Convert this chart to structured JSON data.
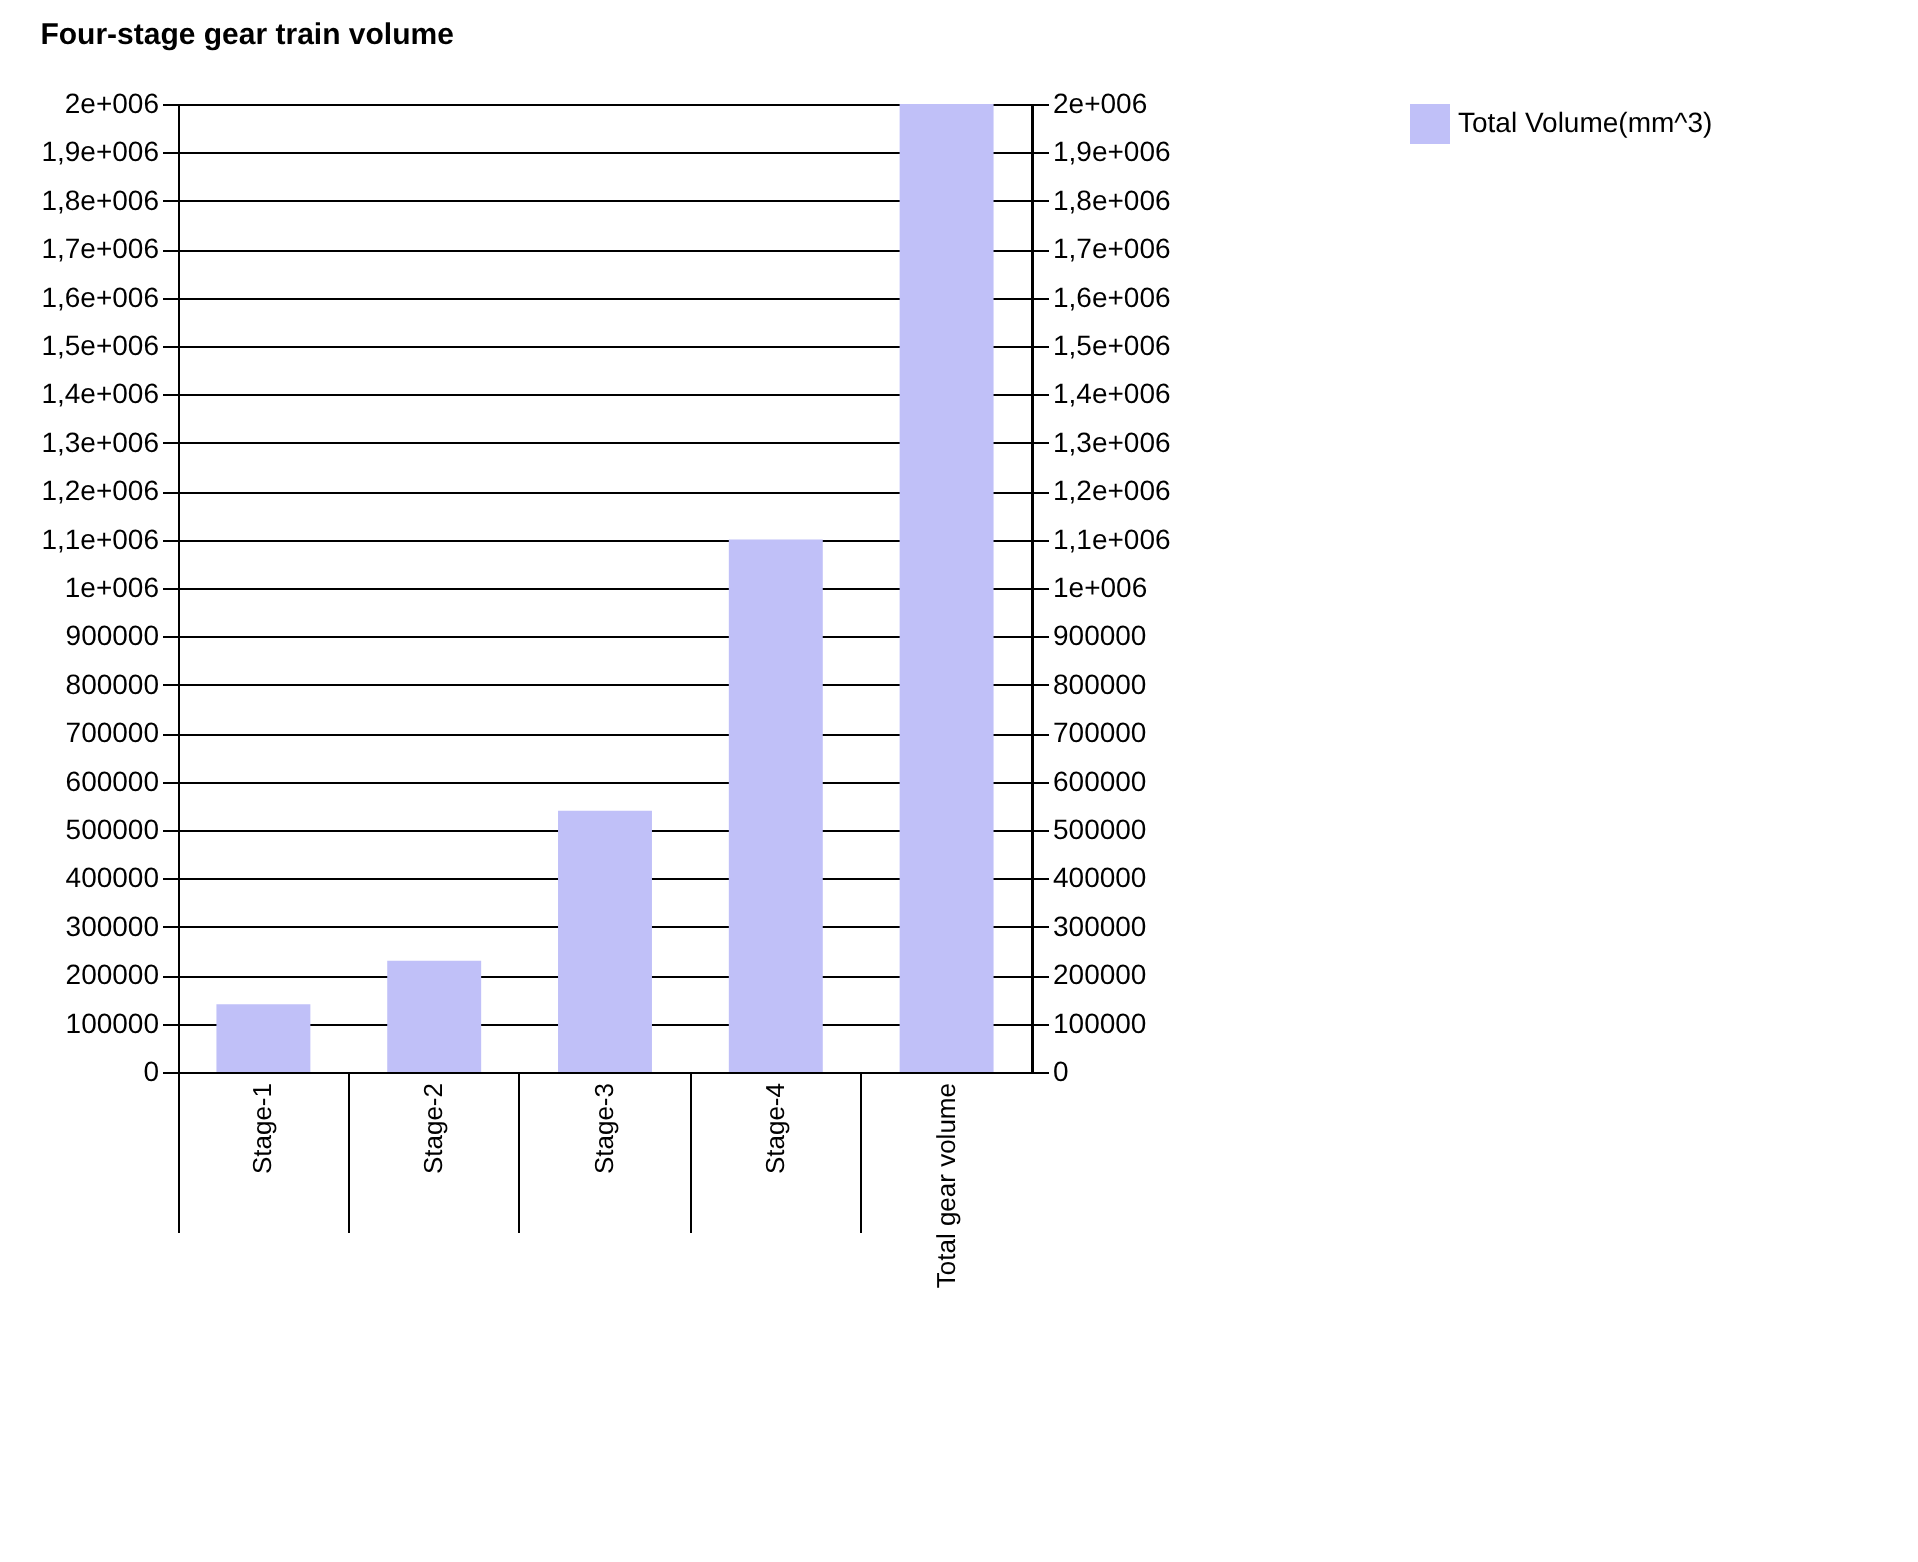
{
  "chart_data": {
    "type": "bar",
    "title": "Four-stage gear train volume",
    "categories": [
      "Stage-1",
      "Stage-2",
      "Stage-3",
      "Stage-4",
      "Total gear volume"
    ],
    "series": [
      {
        "name": "Total Volume(mm^3)",
        "color": "#c0c0f8",
        "values": [
          140000,
          230000,
          540000,
          1100000,
          2000000
        ]
      }
    ],
    "ylim": [
      0,
      2000000
    ],
    "yticks": [
      0,
      100000,
      200000,
      300000,
      400000,
      500000,
      600000,
      700000,
      800000,
      900000,
      {
        "value": 1000000,
        "label": "1e+006"
      },
      {
        "value": 1100000,
        "label": "1,1e+006"
      },
      {
        "value": 1200000,
        "label": "1,2e+006"
      },
      {
        "value": 1300000,
        "label": "1,3e+006"
      },
      {
        "value": 1400000,
        "label": "1,4e+006"
      },
      {
        "value": 1500000,
        "label": "1,5e+006"
      },
      {
        "value": 1600000,
        "label": "1,6e+006"
      },
      {
        "value": 1700000,
        "label": "1,7e+006"
      },
      {
        "value": 1800000,
        "label": "1,8e+006"
      },
      {
        "value": 1900000,
        "label": "1,9e+006"
      },
      {
        "value": 2000000,
        "label": "2e+006"
      }
    ],
    "y2lim": [
      0,
      2000000
    ],
    "y2ticks": [
      0,
      100000,
      200000,
      300000,
      400000,
      500000,
      600000,
      700000,
      800000,
      900000,
      {
        "value": 1000000,
        "label": "1e+006"
      },
      {
        "value": 1100000,
        "label": "1,1e+006"
      },
      {
        "value": 1200000,
        "label": "1,2e+006"
      },
      {
        "value": 1300000,
        "label": "1,3e+006"
      },
      {
        "value": 1400000,
        "label": "1,4e+006"
      },
      {
        "value": 1500000,
        "label": "1,5e+006"
      },
      {
        "value": 1600000,
        "label": "1,6e+006"
      },
      {
        "value": 1700000,
        "label": "1,7e+006"
      },
      {
        "value": 1800000,
        "label": "1,8e+006"
      },
      {
        "value": 1900000,
        "label": "1,9e+006"
      },
      {
        "value": 2000000,
        "label": "2e+006"
      }
    ],
    "grid": "y",
    "legend": "right"
  }
}
